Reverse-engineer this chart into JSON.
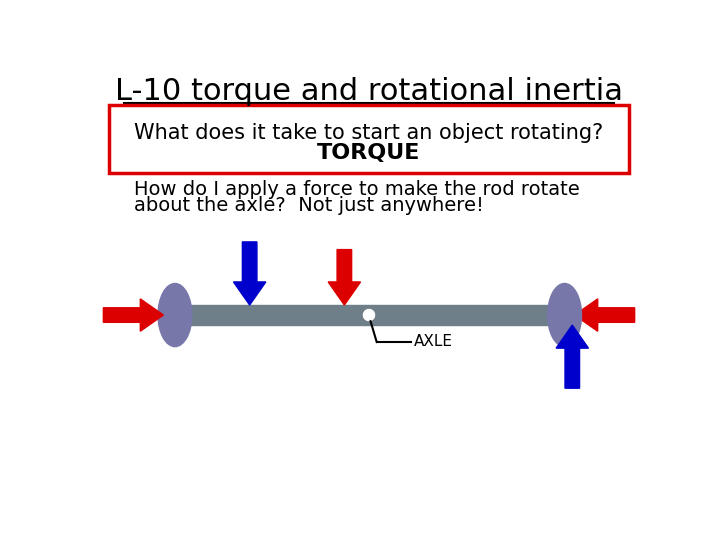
{
  "title": "L-10 torque and rotational inertia",
  "box_line1": "What does it take to start an object rotating?",
  "box_line2": "TORQUE",
  "body_text_line1": "How do I apply a force to make the rod rotate",
  "body_text_line2": "about the axle?  Not just anywhere!",
  "axle_label": "AXLE",
  "bg_color": "#ffffff",
  "title_color": "#000000",
  "box_text_color": "#000000",
  "body_text_color": "#000000",
  "rod_color": "#6e7f8a",
  "wheel_color": "#7777aa",
  "axle_dot_color": "#ffffff",
  "red": "#dd0000",
  "blue": "#0000cc"
}
